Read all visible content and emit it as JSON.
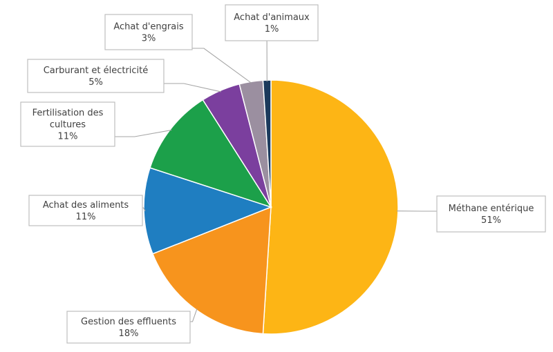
{
  "chart_data": {
    "type": "pie",
    "title": "",
    "slices": [
      {
        "name": "Méthane entérique",
        "lines": [
          "Méthane entérique"
        ],
        "value": 51,
        "percent_label": "51%",
        "color": "#FDB515"
      },
      {
        "name": "Gestion des effluents",
        "lines": [
          "Gestion des effluents"
        ],
        "value": 18,
        "percent_label": "18%",
        "color": "#F7941D"
      },
      {
        "name": "Achat des aliments",
        "lines": [
          "Achat des aliments"
        ],
        "value": 11,
        "percent_label": "11%",
        "color": "#1F7EC1"
      },
      {
        "name": "Fertilisation des cultures",
        "lines": [
          "Fertilisation des",
          "cultures"
        ],
        "value": 11,
        "percent_label": "11%",
        "color": "#1CA04A"
      },
      {
        "name": "Carburant et électricité",
        "lines": [
          "Carburant et électricité"
        ],
        "value": 5,
        "percent_label": "5%",
        "color": "#7B3F9E"
      },
      {
        "name": "Achat d'engrais",
        "lines": [
          "Achat d'engrais"
        ],
        "value": 3,
        "percent_label": "3%",
        "color": "#9B8FA0"
      },
      {
        "name": "Achat d'animaux",
        "lines": [
          "Achat d'animaux"
        ],
        "value": 1,
        "percent_label": "1%",
        "color": "#1B3A5C"
      }
    ]
  }
}
